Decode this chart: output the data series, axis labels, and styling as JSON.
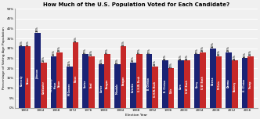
{
  "title": "How Much of the U.S. Population Voted for Each Candidate?",
  "xlabel": "Election Year",
  "ylabel": "Percentage of Voting Age Population",
  "years": [
    1960,
    1964,
    1968,
    1972,
    1976,
    1980,
    1984,
    1988,
    1992,
    1996,
    2000,
    2004,
    2008,
    2012,
    2016
  ],
  "dem_candidates": [
    "Kennedy",
    "Johnson",
    "Humphrey/\nHixon",
    "McGovern",
    "Carter",
    "Carter",
    "Mondale",
    "Dukakis",
    "B. Clinton",
    "B. Clinton",
    "Gore",
    "Kerry",
    "Obama",
    "Obama",
    "H. Clinton"
  ],
  "rep_candidates": [
    "Nixon",
    "Goldwater",
    "Nixon",
    "Nixon",
    "Ford",
    "Reagan",
    "Reagan",
    "G.H.W. Bush",
    "G.H.W. Bush",
    "Dole",
    "G.W. Bush",
    "G.W. Bush",
    "McCain",
    "Romney",
    "Trump"
  ],
  "dem_values": [
    31,
    38,
    26,
    21,
    27,
    22,
    22,
    23,
    27,
    24,
    24,
    27,
    30,
    28,
    25
  ],
  "rep_values": [
    31,
    23,
    28,
    33,
    26,
    27,
    31,
    27,
    21,
    20,
    24,
    28,
    26,
    24,
    26
  ],
  "dem_color": "#1a2374",
  "rep_color": "#c62828",
  "bar_width": 0.38,
  "ylim": [
    0,
    50
  ],
  "yticks": [
    0,
    5,
    10,
    15,
    20,
    25,
    30,
    35,
    40,
    45,
    50
  ],
  "background_color": "#f0f0f0",
  "grid_color": "#ffffff",
  "title_fontsize": 5.0,
  "label_fontsize": 3.2,
  "tick_fontsize": 3.0,
  "bar_label_fontsize": 2.3,
  "name_fontsize": 2.1
}
